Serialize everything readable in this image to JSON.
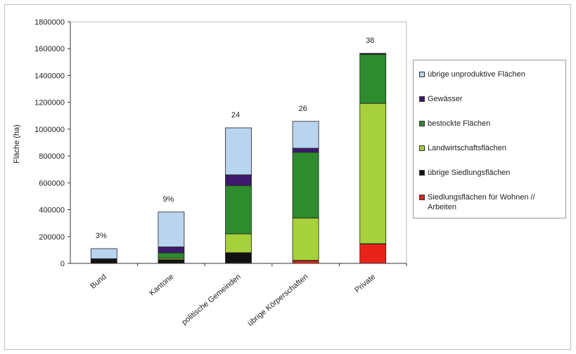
{
  "chart_data": {
    "type": "bar",
    "stacked": true,
    "ylabel": "Fläche (ha)",
    "xlabel": "",
    "ylim": [
      0,
      1800000
    ],
    "yticks": [
      0,
      200000,
      400000,
      600000,
      800000,
      1000000,
      1200000,
      1400000,
      1600000,
      1800000
    ],
    "ytick_labels": [
      "0",
      "200000",
      "400000",
      "600000",
      "800000",
      "1000000",
      "1200000",
      "1400000",
      "1600000",
      "1800000"
    ],
    "categories": [
      "Bund",
      "Kantone",
      "politische Gemeinden",
      "übrige Körperschaften",
      "Private"
    ],
    "bar_annotations": [
      "3%",
      "9%",
      "24",
      "26",
      "38"
    ],
    "series": [
      {
        "name": "Siedlungsflächen für Wohnen // Arbeiten",
        "color": "#e8231a",
        "values": [
          2000,
          3000,
          5000,
          20000,
          145000
        ]
      },
      {
        "name": "übrige Siedlungsflächen",
        "color": "#111111",
        "values": [
          30000,
          25000,
          75000,
          3000,
          2000
        ]
      },
      {
        "name": "Landwirtschaftsflächen",
        "color": "#a6d13a",
        "values": [
          3000,
          10000,
          140000,
          315000,
          1045000
        ]
      },
      {
        "name": "bestockte Flächen",
        "color": "#2e8b2e",
        "values": [
          0,
          40000,
          360000,
          490000,
          365000
        ]
      },
      {
        "name": "Gewässer",
        "color": "#3d1a6e",
        "values": [
          0,
          45000,
          80000,
          30000,
          5000
        ]
      },
      {
        "name": "übrige unproduktive Flächen",
        "color": "#b8d4ef",
        "values": [
          75000,
          260000,
          350000,
          200000,
          3000
        ]
      }
    ],
    "legend_position": "right",
    "legend_order": [
      "übrige unproduktive Flächen",
      "Gewässer",
      "bestockte Flächen",
      "Landwirtschaftsflächen",
      "übrige Siedlungsflächen",
      "Siedlungsflächen für Wohnen // Arbeiten"
    ],
    "grid": false
  }
}
